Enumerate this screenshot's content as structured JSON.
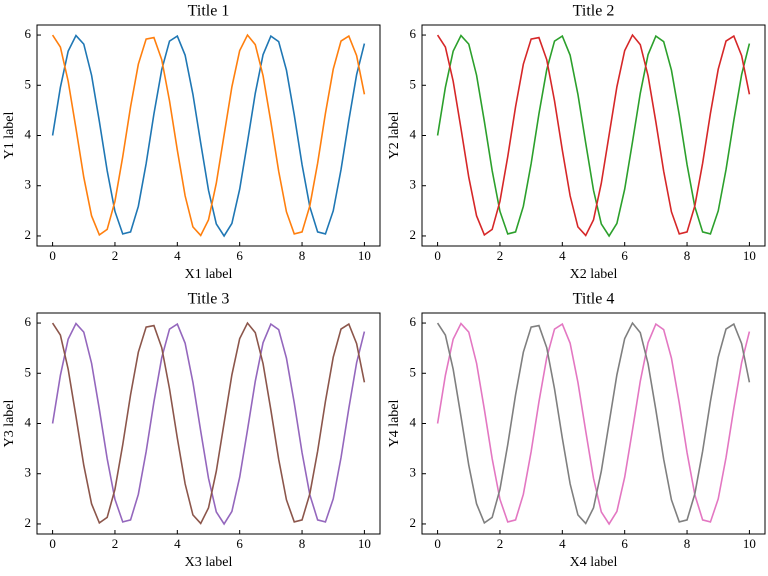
{
  "chart_data": [
    {
      "type": "line",
      "title": "Title 1",
      "x_label": "X1 label",
      "y_label": "Y1 label",
      "x": [
        0,
        0.25,
        0.5,
        0.75,
        1,
        1.25,
        1.5,
        1.75,
        2,
        2.25,
        2.5,
        2.75,
        3,
        3.25,
        3.5,
        3.75,
        4,
        4.25,
        4.5,
        4.75,
        5,
        5.25,
        5.5,
        5.75,
        6,
        6.25,
        6.5,
        6.75,
        7,
        7.25,
        7.5,
        7.75,
        8,
        8.25,
        8.5,
        8.75,
        9,
        9.25,
        9.5,
        9.75,
        10
      ],
      "series": [
        {
          "color": "#1f77b4",
          "values": [
            4,
            4.96,
            5.68,
            5.99,
            5.82,
            5.2,
            4.28,
            3.3,
            2.49,
            2.04,
            2.08,
            2.59,
            3.44,
            4.43,
            5.31,
            5.88,
            5.98,
            5.6,
            4.82,
            3.85,
            2.91,
            2.24,
            2.0,
            2.25,
            2.93,
            3.87,
            4.84,
            5.61,
            5.98,
            5.87,
            5.3,
            4.41,
            3.42,
            2.58,
            2.08,
            2.04,
            2.5,
            3.32,
            4.3,
            5.21,
            5.83
          ]
        },
        {
          "color": "#ff7f0e",
          "values": [
            6,
            5.76,
            5.08,
            4.14,
            3.17,
            2.4,
            2.02,
            2.13,
            2.69,
            3.58,
            4.57,
            5.42,
            5.92,
            5.95,
            5.51,
            4.69,
            3.71,
            2.8,
            2.18,
            2.01,
            2.32,
            3.05,
            4.01,
            4.97,
            5.69,
            6.0,
            5.81,
            5.19,
            4.27,
            3.29,
            2.48,
            2.04,
            2.08,
            2.6,
            3.45,
            4.44,
            5.32,
            5.88,
            5.98,
            5.59,
            4.82
          ]
        }
      ],
      "xlim": [
        -0.5,
        10.5
      ],
      "ylim": [
        1.8,
        6.2
      ],
      "xticks": [
        0,
        2,
        4,
        6,
        8,
        10
      ],
      "yticks": [
        2,
        3,
        4,
        5,
        6
      ],
      "grid": false
    },
    {
      "type": "line",
      "title": "Title 2",
      "x_label": "X2 label",
      "y_label": "Y2 label",
      "x": [
        0,
        0.25,
        0.5,
        0.75,
        1,
        1.25,
        1.5,
        1.75,
        2,
        2.25,
        2.5,
        2.75,
        3,
        3.25,
        3.5,
        3.75,
        4,
        4.25,
        4.5,
        4.75,
        5,
        5.25,
        5.5,
        5.75,
        6,
        6.25,
        6.5,
        6.75,
        7,
        7.25,
        7.5,
        7.75,
        8,
        8.25,
        8.5,
        8.75,
        9,
        9.25,
        9.5,
        9.75,
        10
      ],
      "series": [
        {
          "color": "#2ca02c",
          "values": [
            4,
            4.96,
            5.68,
            5.99,
            5.82,
            5.2,
            4.28,
            3.3,
            2.49,
            2.04,
            2.08,
            2.59,
            3.44,
            4.43,
            5.31,
            5.88,
            5.98,
            5.6,
            4.82,
            3.85,
            2.91,
            2.24,
            2.0,
            2.25,
            2.93,
            3.87,
            4.84,
            5.61,
            5.98,
            5.87,
            5.3,
            4.41,
            3.42,
            2.58,
            2.08,
            2.04,
            2.5,
            3.32,
            4.3,
            5.21,
            5.83
          ]
        },
        {
          "color": "#d62728",
          "values": [
            6,
            5.76,
            5.08,
            4.14,
            3.17,
            2.4,
            2.02,
            2.13,
            2.69,
            3.58,
            4.57,
            5.42,
            5.92,
            5.95,
            5.51,
            4.69,
            3.71,
            2.8,
            2.18,
            2.01,
            2.32,
            3.05,
            4.01,
            4.97,
            5.69,
            6.0,
            5.81,
            5.19,
            4.27,
            3.29,
            2.48,
            2.04,
            2.08,
            2.6,
            3.45,
            4.44,
            5.32,
            5.88,
            5.98,
            5.59,
            4.82
          ]
        }
      ],
      "xlim": [
        -0.5,
        10.5
      ],
      "ylim": [
        1.8,
        6.2
      ],
      "xticks": [
        0,
        2,
        4,
        6,
        8,
        10
      ],
      "yticks": [
        2,
        3,
        4,
        5,
        6
      ],
      "grid": false
    },
    {
      "type": "line",
      "title": "Title 3",
      "x_label": "X3 label",
      "y_label": "Y3 label",
      "x": [
        0,
        0.25,
        0.5,
        0.75,
        1,
        1.25,
        1.5,
        1.75,
        2,
        2.25,
        2.5,
        2.75,
        3,
        3.25,
        3.5,
        3.75,
        4,
        4.25,
        4.5,
        4.75,
        5,
        5.25,
        5.5,
        5.75,
        6,
        6.25,
        6.5,
        6.75,
        7,
        7.25,
        7.5,
        7.75,
        8,
        8.25,
        8.5,
        8.75,
        9,
        9.25,
        9.5,
        9.75,
        10
      ],
      "series": [
        {
          "color": "#9467bd",
          "values": [
            4,
            4.96,
            5.68,
            5.99,
            5.82,
            5.2,
            4.28,
            3.3,
            2.49,
            2.04,
            2.08,
            2.59,
            3.44,
            4.43,
            5.31,
            5.88,
            5.98,
            5.6,
            4.82,
            3.85,
            2.91,
            2.24,
            2.0,
            2.25,
            2.93,
            3.87,
            4.84,
            5.61,
            5.98,
            5.87,
            5.3,
            4.41,
            3.42,
            2.58,
            2.08,
            2.04,
            2.5,
            3.32,
            4.3,
            5.21,
            5.83
          ]
        },
        {
          "color": "#8c564b",
          "values": [
            6,
            5.76,
            5.08,
            4.14,
            3.17,
            2.4,
            2.02,
            2.13,
            2.69,
            3.58,
            4.57,
            5.42,
            5.92,
            5.95,
            5.51,
            4.69,
            3.71,
            2.8,
            2.18,
            2.01,
            2.32,
            3.05,
            4.01,
            4.97,
            5.69,
            6.0,
            5.81,
            5.19,
            4.27,
            3.29,
            2.48,
            2.04,
            2.08,
            2.6,
            3.45,
            4.44,
            5.32,
            5.88,
            5.98,
            5.59,
            4.82
          ]
        }
      ],
      "xlim": [
        -0.5,
        10.5
      ],
      "ylim": [
        1.8,
        6.2
      ],
      "xticks": [
        0,
        2,
        4,
        6,
        8,
        10
      ],
      "yticks": [
        2,
        3,
        4,
        5,
        6
      ],
      "grid": false
    },
    {
      "type": "line",
      "title": "Title 4",
      "x_label": "X4 label",
      "y_label": "Y4 label",
      "x": [
        0,
        0.25,
        0.5,
        0.75,
        1,
        1.25,
        1.5,
        1.75,
        2,
        2.25,
        2.5,
        2.75,
        3,
        3.25,
        3.5,
        3.75,
        4,
        4.25,
        4.5,
        4.75,
        5,
        5.25,
        5.5,
        5.75,
        6,
        6.25,
        6.5,
        6.75,
        7,
        7.25,
        7.5,
        7.75,
        8,
        8.25,
        8.5,
        8.75,
        9,
        9.25,
        9.5,
        9.75,
        10
      ],
      "series": [
        {
          "color": "#e377c2",
          "values": [
            4,
            4.96,
            5.68,
            5.99,
            5.82,
            5.2,
            4.28,
            3.3,
            2.49,
            2.04,
            2.08,
            2.59,
            3.44,
            4.43,
            5.31,
            5.88,
            5.98,
            5.6,
            4.82,
            3.85,
            2.91,
            2.24,
            2.0,
            2.25,
            2.93,
            3.87,
            4.84,
            5.61,
            5.98,
            5.87,
            5.3,
            4.41,
            3.42,
            2.58,
            2.08,
            2.04,
            2.5,
            3.32,
            4.3,
            5.21,
            5.83
          ]
        },
        {
          "color": "#7f7f7f",
          "values": [
            6,
            5.76,
            5.08,
            4.14,
            3.17,
            2.4,
            2.02,
            2.13,
            2.69,
            3.58,
            4.57,
            5.42,
            5.92,
            5.95,
            5.51,
            4.69,
            3.71,
            2.8,
            2.18,
            2.01,
            2.32,
            3.05,
            4.01,
            4.97,
            5.69,
            6.0,
            5.81,
            5.19,
            4.27,
            3.29,
            2.48,
            2.04,
            2.08,
            2.6,
            3.45,
            4.44,
            5.32,
            5.88,
            5.98,
            5.59,
            4.82
          ]
        }
      ],
      "xlim": [
        -0.5,
        10.5
      ],
      "ylim": [
        1.8,
        6.2
      ],
      "xticks": [
        0,
        2,
        4,
        6,
        8,
        10
      ],
      "yticks": [
        2,
        3,
        4,
        5,
        6
      ],
      "grid": false
    }
  ]
}
